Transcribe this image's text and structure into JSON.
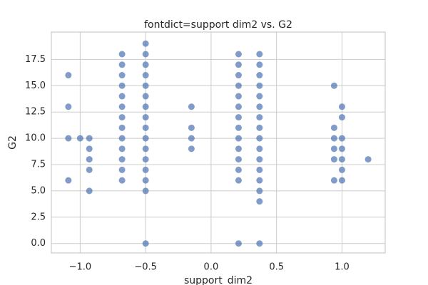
{
  "chart_data": {
    "type": "scatter",
    "title": "fontdict=support dim2 vs. G2",
    "x_label": "support_dim2",
    "y_label": "G2",
    "xlim": [
      -1.22,
      1.33
    ],
    "ylim": [
      -0.9,
      20.1
    ],
    "xticks": [
      {
        "value": -1.0,
        "label": "−1.0"
      },
      {
        "value": -0.5,
        "label": "−0.5"
      },
      {
        "value": 0.0,
        "label": "0.0"
      },
      {
        "value": 0.5,
        "label": "0.5"
      },
      {
        "value": 1.0,
        "label": "1.0"
      }
    ],
    "yticks": [
      {
        "value": 0,
        "label": "0.0"
      },
      {
        "value": 2.5,
        "label": "2.5"
      },
      {
        "value": 5,
        "label": "5.0"
      },
      {
        "value": 7.5,
        "label": "7.5"
      },
      {
        "value": 10,
        "label": "10.0"
      },
      {
        "value": 12.5,
        "label": "12.5"
      },
      {
        "value": 15,
        "label": "15.0"
      },
      {
        "value": 17.5,
        "label": "17.5"
      }
    ],
    "grid": true,
    "series": [
      {
        "color": "#4c72b0",
        "x": [
          -1.09,
          -1.09,
          -1.09,
          -1.09,
          -1.0,
          -0.93,
          -0.93,
          -0.93,
          -0.93,
          -0.93,
          -0.68,
          -0.68,
          -0.68,
          -0.68,
          -0.68,
          -0.68,
          -0.68,
          -0.68,
          -0.68,
          -0.68,
          -0.68,
          -0.68,
          -0.68,
          -0.5,
          -0.5,
          -0.5,
          -0.5,
          -0.5,
          -0.5,
          -0.5,
          -0.5,
          -0.5,
          -0.5,
          -0.5,
          -0.5,
          -0.5,
          -0.5,
          -0.5,
          -0.5,
          -0.15,
          -0.15,
          -0.15,
          -0.15,
          0.21,
          0.21,
          0.21,
          0.21,
          0.21,
          0.21,
          0.21,
          0.21,
          0.21,
          0.21,
          0.21,
          0.21,
          0.21,
          0.21,
          0.37,
          0.37,
          0.37,
          0.37,
          0.37,
          0.37,
          0.37,
          0.37,
          0.37,
          0.37,
          0.37,
          0.37,
          0.37,
          0.37,
          0.37,
          0.37,
          0.94,
          0.94,
          0.94,
          0.94,
          0.94,
          0.94,
          1.0,
          1.0,
          1.0,
          1.0,
          1.0,
          1.0,
          1.0,
          1.2
        ],
        "values": [
          16,
          13,
          10,
          6,
          10,
          10,
          9,
          8,
          7,
          5,
          18,
          17,
          16,
          15,
          14,
          13,
          12,
          11,
          10,
          9,
          8,
          7,
          6,
          19,
          18,
          17,
          16,
          15,
          14,
          13,
          12,
          11,
          10,
          9,
          8,
          7,
          6,
          5,
          0,
          13,
          11,
          10,
          9,
          18,
          17,
          16,
          15,
          14,
          13,
          12,
          11,
          10,
          9,
          8,
          7,
          6,
          0,
          18,
          17,
          16,
          15,
          14,
          13,
          12,
          11,
          10,
          9,
          8,
          7,
          6,
          5,
          4,
          0,
          15,
          11,
          10,
          9,
          8,
          6,
          13,
          12,
          10,
          9,
          8,
          7,
          6,
          8
        ]
      }
    ]
  }
}
